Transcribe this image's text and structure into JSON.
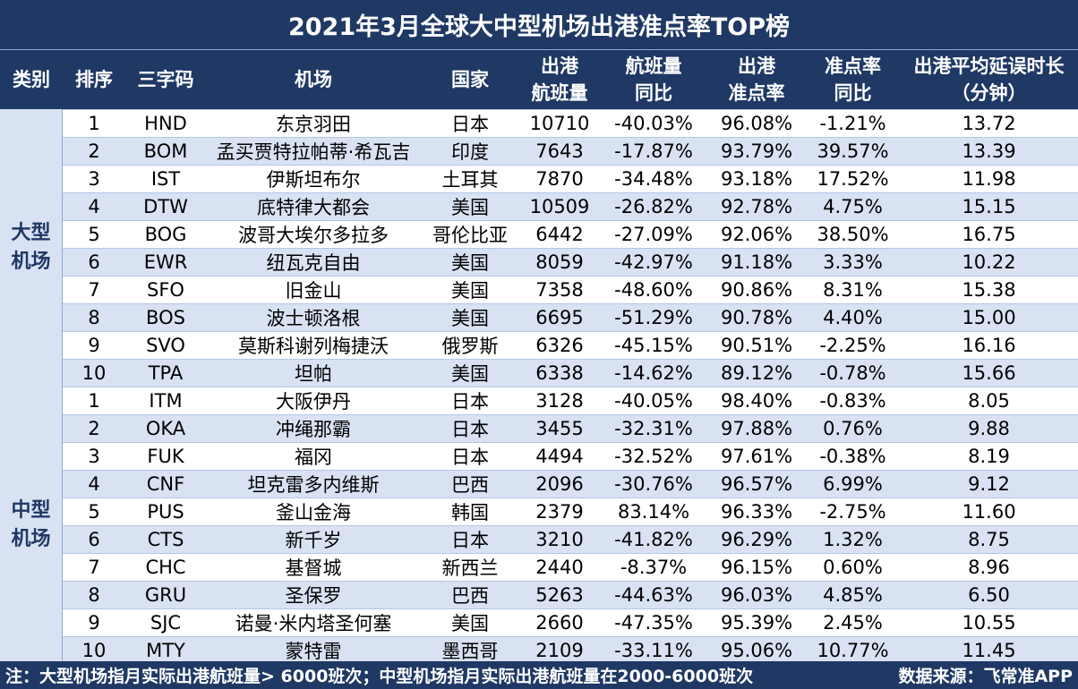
{
  "title": "2021年3月全球大中型机场出港准点率TOP榜",
  "headers": {
    "category": "类别",
    "rank": "排序",
    "code": "三字码",
    "airport": "机场",
    "country": "国家",
    "flights": [
      "出港",
      "航班量"
    ],
    "flights_yoy": [
      "航班量",
      "同比"
    ],
    "otp": [
      "出港",
      "准点率"
    ],
    "otp_yoy": [
      "准点率",
      "同比"
    ],
    "delay": [
      "出港平均延误时长",
      "（分钟）"
    ]
  },
  "groups": [
    {
      "category": [
        "大型",
        "机场"
      ],
      "rows": [
        {
          "rank": "1",
          "code": "HND",
          "airport": "东京羽田",
          "country": "日本",
          "flights": "10710",
          "flights_yoy": "-40.03%",
          "otp": "96.08%",
          "otp_yoy": "-1.21%",
          "delay": "13.72"
        },
        {
          "rank": "2",
          "code": "BOM",
          "airport": "孟买贾特拉帕蒂·希瓦吉",
          "country": "印度",
          "flights": "7643",
          "flights_yoy": "-17.87%",
          "otp": "93.79%",
          "otp_yoy": "39.57%",
          "delay": "13.39"
        },
        {
          "rank": "3",
          "code": "IST",
          "airport": "伊斯坦布尔",
          "country": "土耳其",
          "flights": "7870",
          "flights_yoy": "-34.48%",
          "otp": "93.18%",
          "otp_yoy": "17.52%",
          "delay": "11.98"
        },
        {
          "rank": "4",
          "code": "DTW",
          "airport": "底特律大都会",
          "country": "美国",
          "flights": "10509",
          "flights_yoy": "-26.82%",
          "otp": "92.78%",
          "otp_yoy": "4.75%",
          "delay": "15.15"
        },
        {
          "rank": "5",
          "code": "BOG",
          "airport": "波哥大埃尔多拉多",
          "country": "哥伦比亚",
          "flights": "6442",
          "flights_yoy": "-27.09%",
          "otp": "92.06%",
          "otp_yoy": "38.50%",
          "delay": "16.75"
        },
        {
          "rank": "6",
          "code": "EWR",
          "airport": "纽瓦克自由",
          "country": "美国",
          "flights": "8059",
          "flights_yoy": "-42.97%",
          "otp": "91.18%",
          "otp_yoy": "3.33%",
          "delay": "10.22"
        },
        {
          "rank": "7",
          "code": "SFO",
          "airport": "旧金山",
          "country": "美国",
          "flights": "7358",
          "flights_yoy": "-48.60%",
          "otp": "90.86%",
          "otp_yoy": "8.31%",
          "delay": "15.38"
        },
        {
          "rank": "8",
          "code": "BOS",
          "airport": "波士顿洛根",
          "country": "美国",
          "flights": "6695",
          "flights_yoy": "-51.29%",
          "otp": "90.78%",
          "otp_yoy": "4.40%",
          "delay": "15.00"
        },
        {
          "rank": "9",
          "code": "SVO",
          "airport": "莫斯科谢列梅捷沃",
          "country": "俄罗斯",
          "flights": "6326",
          "flights_yoy": "-45.15%",
          "otp": "90.51%",
          "otp_yoy": "-2.25%",
          "delay": "16.16"
        },
        {
          "rank": "10",
          "code": "TPA",
          "airport": "坦帕",
          "country": "美国",
          "flights": "6338",
          "flights_yoy": "-14.62%",
          "otp": "89.12%",
          "otp_yoy": "-0.78%",
          "delay": "15.66"
        }
      ]
    },
    {
      "category": [
        "中型",
        "机场"
      ],
      "rows": [
        {
          "rank": "1",
          "code": "ITM",
          "airport": "大阪伊丹",
          "country": "日本",
          "flights": "3128",
          "flights_yoy": "-40.05%",
          "otp": "98.40%",
          "otp_yoy": "-0.83%",
          "delay": "8.05"
        },
        {
          "rank": "2",
          "code": "OKA",
          "airport": "冲绳那霸",
          "country": "日本",
          "flights": "3455",
          "flights_yoy": "-32.31%",
          "otp": "97.88%",
          "otp_yoy": "0.76%",
          "delay": "9.88"
        },
        {
          "rank": "3",
          "code": "FUK",
          "airport": "福冈",
          "country": "日本",
          "flights": "4494",
          "flights_yoy": "-32.52%",
          "otp": "97.61%",
          "otp_yoy": "-0.38%",
          "delay": "8.19"
        },
        {
          "rank": "4",
          "code": "CNF",
          "airport": "坦克雷多内维斯",
          "country": "巴西",
          "flights": "2096",
          "flights_yoy": "-30.76%",
          "otp": "96.57%",
          "otp_yoy": "6.99%",
          "delay": "9.12"
        },
        {
          "rank": "5",
          "code": "PUS",
          "airport": "釜山金海",
          "country": "韩国",
          "flights": "2379",
          "flights_yoy": "83.14%",
          "otp": "96.33%",
          "otp_yoy": "-2.75%",
          "delay": "11.60"
        },
        {
          "rank": "6",
          "code": "CTS",
          "airport": "新千岁",
          "country": "日本",
          "flights": "3210",
          "flights_yoy": "-41.82%",
          "otp": "96.29%",
          "otp_yoy": "1.32%",
          "delay": "8.75"
        },
        {
          "rank": "7",
          "code": "CHC",
          "airport": "基督城",
          "country": "新西兰",
          "flights": "2440",
          "flights_yoy": "-8.37%",
          "otp": "96.15%",
          "otp_yoy": "0.60%",
          "delay": "8.96"
        },
        {
          "rank": "8",
          "code": "GRU",
          "airport": "圣保罗",
          "country": "巴西",
          "flights": "5263",
          "flights_yoy": "-44.63%",
          "otp": "96.03%",
          "otp_yoy": "4.85%",
          "delay": "6.50"
        },
        {
          "rank": "9",
          "code": "SJC",
          "airport": "诺曼·米内塔圣何塞",
          "country": "美国",
          "flights": "2660",
          "flights_yoy": "-47.35%",
          "otp": "95.39%",
          "otp_yoy": "2.45%",
          "delay": "10.55"
        },
        {
          "rank": "10",
          "code": "MTY",
          "airport": "蒙特雷",
          "country": "墨西哥",
          "flights": "2109",
          "flights_yoy": "-33.11%",
          "otp": "95.06%",
          "otp_yoy": "10.77%",
          "delay": "11.45"
        }
      ]
    }
  ],
  "footer": {
    "note": "注：大型机场指月实际出港航班量> 6000班次；中型机场指月实际出港航班量在2000-6000班次",
    "source": "数据来源：飞常准APP"
  },
  "colors": {
    "header_bg": "#1f3864",
    "header_text": "#ffffff",
    "row_alt": "#d9e2f3",
    "row_plain": "#ffffff"
  }
}
